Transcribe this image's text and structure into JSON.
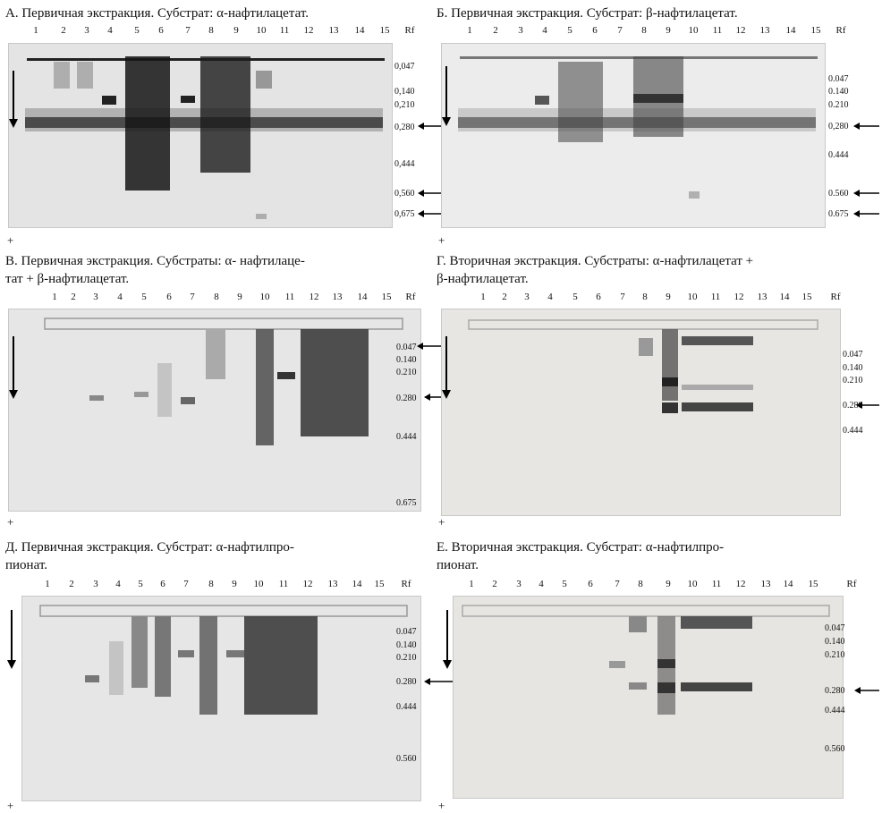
{
  "panels": [
    {
      "id": "A",
      "title_lines": [
        "А. Первичная экстракция. Субстрат: α-нафтилацетат."
      ],
      "lanes": [
        "1",
        "2",
        "3",
        "4",
        "5",
        "6",
        "7",
        "8",
        "9",
        "10",
        "11",
        "12",
        "13",
        "14",
        "15"
      ],
      "rf_header": "Rf",
      "rf_values": [
        "0,047",
        "0,140",
        "0,210",
        "0,280",
        "0,444",
        "0,560",
        "0,675"
      ],
      "arrowed_rf": [
        "0,280",
        "0,560",
        "0,675"
      ],
      "plus": "+"
    },
    {
      "id": "B",
      "title_lines": [
        "Б. Первичная экстракция. Субстрат: β-нафтилацетат."
      ],
      "lanes": [
        "1",
        "2",
        "3",
        "4",
        "5",
        "6",
        "7",
        "8",
        "9",
        "10",
        "11",
        "12",
        "13",
        "14",
        "15"
      ],
      "rf_header": "Rf",
      "rf_values": [
        "0.047",
        "0.140",
        "0.210",
        "0,280",
        "0.444",
        "0.560",
        "0.675"
      ],
      "arrowed_rf": [
        "0,280",
        "0.560",
        "0.675"
      ],
      "plus": "+"
    },
    {
      "id": "C",
      "title_lines": [
        "В. Первичная экстракция. Субстраты: α- нафтилаце-",
        "тат + β-нафтилацетат."
      ],
      "lanes": [
        "1",
        "2",
        "3",
        "4",
        "5",
        "6",
        "7",
        "8",
        "9",
        "10",
        "11",
        "12",
        "13",
        "14",
        "15"
      ],
      "rf_header": "Rf",
      "rf_values": [
        "0.047",
        "0.140",
        "0.210",
        "0.280",
        "0.444",
        "0.675"
      ],
      "arrowed_rf": [
        "0.047",
        "0.280"
      ],
      "plus": "+"
    },
    {
      "id": "D",
      "title_lines": [
        "Г. Вторичная экстракция. Субстраты: α-нафтилацетат +",
        "β-нафтилацетат."
      ],
      "lanes": [
        "1",
        "2",
        "3",
        "4",
        "5",
        "6",
        "7",
        "8",
        "9",
        "10",
        "11",
        "12",
        "13",
        "14",
        "15"
      ],
      "rf_header": "Rf",
      "rf_values": [
        "0.047",
        "0.140",
        "0.210",
        "0.280",
        "0.444"
      ],
      "arrowed_rf": [
        "0.280"
      ],
      "plus": "+"
    },
    {
      "id": "E",
      "title_lines": [
        "Д. Первичная экстракция. Субстрат: α-нафтилпро-",
        "пионат."
      ],
      "lanes": [
        "1",
        "2",
        "3",
        "4",
        "5",
        "6",
        "7",
        "8",
        "9",
        "10",
        "11",
        "12",
        "13",
        "14",
        "15"
      ],
      "rf_header": "Rf",
      "rf_values": [
        "0.047",
        "0.140",
        "0.210",
        "0.280",
        "0.444",
        "0.560"
      ],
      "arrowed_rf": [
        "0.280"
      ],
      "plus": "+"
    },
    {
      "id": "F",
      "title_lines": [
        "Е. Вторичная экстракция. Субстрат: α-нафтилпро-",
        "пионат."
      ],
      "lanes": [
        "1",
        "2",
        "3",
        "4",
        "5",
        "6",
        "7",
        "8",
        "9",
        "10",
        "11",
        "12",
        "13",
        "14",
        "15"
      ],
      "rf_header": "Rf",
      "rf_values": [
        "0.047",
        "0.140",
        "0.210",
        "0.280",
        "0.444",
        "0.560"
      ],
      "arrowed_rf": [
        "0.280"
      ],
      "plus": "+"
    }
  ]
}
